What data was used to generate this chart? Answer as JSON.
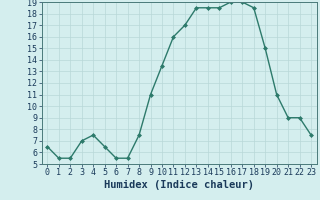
{
  "x": [
    0,
    1,
    2,
    3,
    4,
    5,
    6,
    7,
    8,
    9,
    10,
    11,
    12,
    13,
    14,
    15,
    16,
    17,
    18,
    19,
    20,
    21,
    22,
    23
  ],
  "y": [
    6.5,
    5.5,
    5.5,
    7.0,
    7.5,
    6.5,
    5.5,
    5.5,
    7.5,
    11.0,
    13.5,
    16.0,
    17.0,
    18.5,
    18.5,
    18.5,
    19.0,
    19.0,
    18.5,
    15.0,
    11.0,
    9.0,
    9.0,
    7.5
  ],
  "line_color": "#2d7a6b",
  "marker": "D",
  "marker_size": 2.0,
  "bg_color": "#d4eeee",
  "grid_color": "#b8d8d8",
  "xlabel": "Humidex (Indice chaleur)",
  "xlabel_color": "#1a3a5a",
  "xlabel_fontsize": 7.5,
  "ylim_min": 5,
  "ylim_max": 19,
  "xlim_min": -0.5,
  "xlim_max": 23.5,
  "yticks": [
    5,
    6,
    7,
    8,
    9,
    10,
    11,
    12,
    13,
    14,
    15,
    16,
    17,
    18,
    19
  ],
  "xticks": [
    0,
    1,
    2,
    3,
    4,
    5,
    6,
    7,
    8,
    9,
    10,
    11,
    12,
    13,
    14,
    15,
    16,
    17,
    18,
    19,
    20,
    21,
    22,
    23
  ],
  "tick_color": "#1a3a5a",
  "tick_fontsize": 6.0,
  "spine_color": "#4a7a7a",
  "line_width": 1.0
}
